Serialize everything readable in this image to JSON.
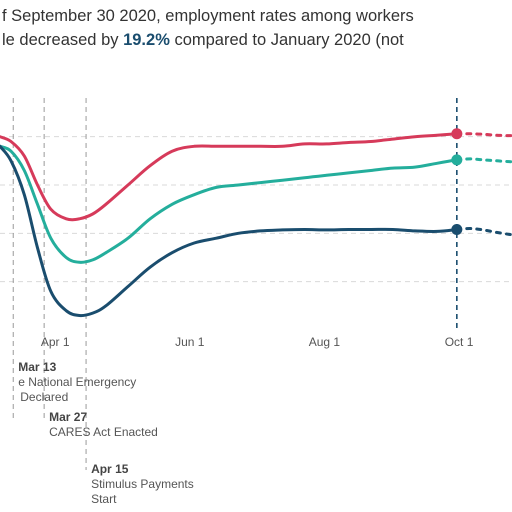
{
  "headline": {
    "line1": "f September 30 2020, employment rates among workers",
    "line2_prefix": "le decreased by ",
    "highlight_value": "19.2%",
    "line2_suffix": " compared to January 2020 (not"
  },
  "chart_data": {
    "type": "line",
    "x_tick_labels": [
      "Apr 1",
      "Jun 1",
      "Aug 1",
      "Oct 1"
    ],
    "x_ticks": [
      "2020-04-01",
      "2020-06-01",
      "2020-08-01",
      "2020-10-01"
    ],
    "xlim": [
      "2020-03-07",
      "2020-10-25"
    ],
    "ylim": [
      -40,
      8
    ],
    "grid": true,
    "projection_after": "2020-09-30",
    "series": [
      {
        "color": "#d63a5a",
        "x": [
          "2020-03-07",
          "2020-03-12",
          "2020-03-18",
          "2020-03-24",
          "2020-03-30",
          "2020-04-06",
          "2020-04-12",
          "2020-04-18",
          "2020-04-24",
          "2020-05-04",
          "2020-05-14",
          "2020-05-24",
          "2020-06-03",
          "2020-06-13",
          "2020-06-23",
          "2020-07-03",
          "2020-07-13",
          "2020-07-23",
          "2020-08-02",
          "2020-08-12",
          "2020-08-22",
          "2020-09-01",
          "2020-09-11",
          "2020-09-21",
          "2020-09-30",
          "2020-10-06",
          "2020-10-12",
          "2020-10-18",
          "2020-10-25"
        ],
        "y": [
          0,
          -1,
          -4,
          -10,
          -15,
          -17,
          -17,
          -16,
          -14,
          -10,
          -6,
          -3,
          -2,
          -2,
          -2,
          -2,
          -2,
          -1.5,
          -1.5,
          -1.2,
          -1,
          -0.5,
          0,
          0.3,
          0.6,
          0.6,
          0.5,
          0.3,
          0.2
        ],
        "end_value": 0.6
      },
      {
        "color": "#24ae9c",
        "x": [
          "2020-03-07",
          "2020-03-12",
          "2020-03-18",
          "2020-03-24",
          "2020-03-30",
          "2020-04-06",
          "2020-04-12",
          "2020-04-18",
          "2020-04-24",
          "2020-05-04",
          "2020-05-14",
          "2020-05-24",
          "2020-06-03",
          "2020-06-13",
          "2020-06-23",
          "2020-07-03",
          "2020-07-13",
          "2020-07-23",
          "2020-08-02",
          "2020-08-12",
          "2020-08-22",
          "2020-09-01",
          "2020-09-11",
          "2020-09-21",
          "2020-09-30",
          "2020-10-06",
          "2020-10-12",
          "2020-10-18",
          "2020-10-25"
        ],
        "y": [
          -2,
          -3,
          -7,
          -14,
          -21,
          -25,
          -26,
          -25.5,
          -24,
          -21,
          -17,
          -14,
          -12,
          -10.5,
          -10,
          -9.5,
          -9,
          -8.5,
          -8,
          -7.5,
          -7,
          -6.5,
          -6.3,
          -5.5,
          -4.8,
          -4.6,
          -4.8,
          -5,
          -5.2
        ],
        "end_value": -4.8
      },
      {
        "color": "#1a4d6e",
        "x": [
          "2020-03-07",
          "2020-03-12",
          "2020-03-18",
          "2020-03-24",
          "2020-03-30",
          "2020-04-06",
          "2020-04-12",
          "2020-04-18",
          "2020-04-24",
          "2020-05-04",
          "2020-05-14",
          "2020-05-24",
          "2020-06-03",
          "2020-06-13",
          "2020-06-23",
          "2020-07-03",
          "2020-07-13",
          "2020-07-23",
          "2020-08-02",
          "2020-08-12",
          "2020-08-22",
          "2020-09-01",
          "2020-09-11",
          "2020-09-21",
          "2020-09-30",
          "2020-10-06",
          "2020-10-12",
          "2020-10-18",
          "2020-10-25"
        ],
        "y": [
          -2,
          -5,
          -12,
          -23,
          -32,
          -36,
          -37,
          -36.5,
          -35,
          -31,
          -27,
          -24,
          -22,
          -21,
          -20,
          -19.5,
          -19.3,
          -19.2,
          -19.3,
          -19.2,
          -19.2,
          -19.2,
          -19.5,
          -19.6,
          -19.2,
          -19,
          -19.3,
          -19.8,
          -20.3
        ],
        "end_value": -19.2
      }
    ],
    "annotations": [
      {
        "date": "2020-03-13",
        "label": "Mar 13",
        "text_lines": [
          "e National Emergency",
          "Declared"
        ]
      },
      {
        "date": "2020-03-27",
        "label": "Mar 27",
        "text_lines": [
          "CARES Act Enacted"
        ]
      },
      {
        "date": "2020-04-15",
        "label": "Apr 15",
        "text_lines": [
          "Stimulus Payments",
          "Start"
        ]
      }
    ],
    "colors": {
      "gridline": "#d9d9d9",
      "event_line": "#9a9a9a",
      "tick_text": "#555555",
      "title_text": "#333333",
      "highlight": "#1a4d6e"
    }
  }
}
